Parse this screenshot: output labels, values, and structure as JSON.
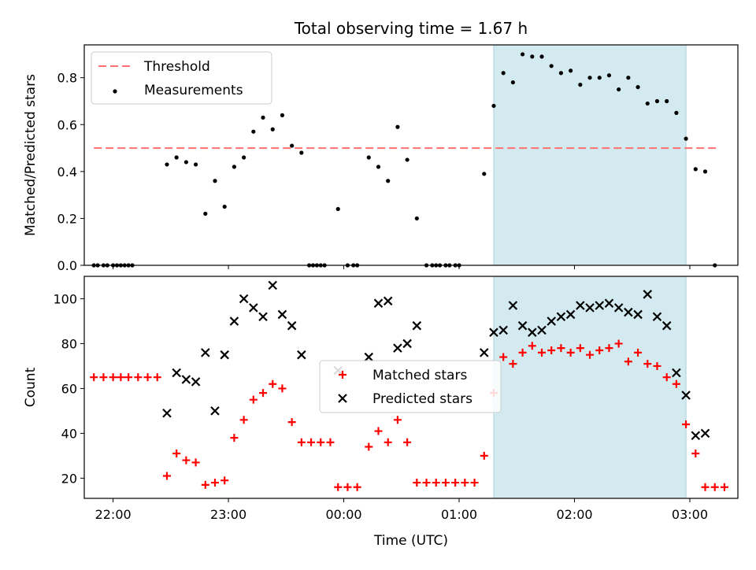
{
  "chart_data": [
    {
      "type": "scatter",
      "title": "Total observing time = 1.67 h",
      "xlabel": "",
      "ylabel": "Matched/Predicted stars",
      "ylim": [
        0,
        0.94
      ],
      "xlim": [
        "21:45",
        "03:25"
      ],
      "yticks": [
        "0.0",
        "0.2",
        "0.4",
        "0.6",
        "0.8"
      ],
      "highlight": {
        "start": "01:18",
        "end": "02:58",
        "color": "#d3ebf0"
      },
      "legend": {
        "placement": "top-left",
        "entries": [
          "Threshold",
          "Measurements"
        ]
      },
      "threshold": {
        "name": "Threshold",
        "value": 0.5,
        "color": "#ff7070",
        "x_range": [
          "21:50",
          "03:15"
        ]
      },
      "series": [
        {
          "name": "Measurements",
          "color": "#000000",
          "marker": "dot",
          "points": [
            [
              "21:50",
              0
            ],
            [
              "21:52",
              0
            ],
            [
              "21:55",
              0
            ],
            [
              "21:57",
              0
            ],
            [
              "22:00",
              0
            ],
            [
              "22:02",
              0
            ],
            [
              "22:04",
              0
            ],
            [
              "22:06",
              0
            ],
            [
              "22:08",
              0
            ],
            [
              "22:10",
              0
            ],
            [
              "22:28",
              0.43
            ],
            [
              "22:33",
              0.46
            ],
            [
              "22:38",
              0.44
            ],
            [
              "22:43",
              0.43
            ],
            [
              "22:48",
              0.22
            ],
            [
              "22:53",
              0.36
            ],
            [
              "22:58",
              0.25
            ],
            [
              "23:03",
              0.42
            ],
            [
              "23:08",
              0.46
            ],
            [
              "23:13",
              0.57
            ],
            [
              "23:18",
              0.63
            ],
            [
              "23:23",
              0.58
            ],
            [
              "23:28",
              0.64
            ],
            [
              "23:33",
              0.51
            ],
            [
              "23:38",
              0.48
            ],
            [
              "23:42",
              0
            ],
            [
              "23:44",
              0
            ],
            [
              "23:46",
              0
            ],
            [
              "23:48",
              0
            ],
            [
              "23:50",
              0
            ],
            [
              "23:57",
              0.24
            ],
            [
              "00:02",
              0
            ],
            [
              "00:05",
              0
            ],
            [
              "00:07",
              0
            ],
            [
              "00:13",
              0.46
            ],
            [
              "00:18",
              0.42
            ],
            [
              "00:23",
              0.36
            ],
            [
              "00:28",
              0.59
            ],
            [
              "00:33",
              0.45
            ],
            [
              "00:38",
              0.2
            ],
            [
              "00:43",
              0
            ],
            [
              "00:46",
              0
            ],
            [
              "00:48",
              0
            ],
            [
              "00:50",
              0
            ],
            [
              "00:53",
              0
            ],
            [
              "00:55",
              0
            ],
            [
              "00:58",
              0
            ],
            [
              "01:00",
              0
            ],
            [
              "01:13",
              0.39
            ],
            [
              "01:18",
              0.68
            ],
            [
              "01:23",
              0.82
            ],
            [
              "01:28",
              0.78
            ],
            [
              "01:33",
              0.9
            ],
            [
              "01:38",
              0.89
            ],
            [
              "01:43",
              0.89
            ],
            [
              "01:48",
              0.85
            ],
            [
              "01:53",
              0.82
            ],
            [
              "01:58",
              0.83
            ],
            [
              "02:03",
              0.77
            ],
            [
              "02:08",
              0.8
            ],
            [
              "02:13",
              0.8
            ],
            [
              "02:18",
              0.81
            ],
            [
              "02:23",
              0.75
            ],
            [
              "02:28",
              0.8
            ],
            [
              "02:33",
              0.76
            ],
            [
              "02:38",
              0.69
            ],
            [
              "02:43",
              0.7
            ],
            [
              "02:48",
              0.7
            ],
            [
              "02:53",
              0.65
            ],
            [
              "02:58",
              0.54
            ],
            [
              "03:03",
              0.41
            ],
            [
              "03:08",
              0.4
            ],
            [
              "03:13",
              0
            ]
          ]
        }
      ]
    },
    {
      "type": "scatter",
      "title": "",
      "xlabel": "Time (UTC)",
      "ylabel": "Count",
      "ylim": [
        11,
        110
      ],
      "xlim": [
        "21:45",
        "03:25"
      ],
      "xticks": [
        "22:00",
        "23:00",
        "00:00",
        "01:00",
        "02:00",
        "03:00"
      ],
      "yticks": [
        "20",
        "40",
        "60",
        "80",
        "100"
      ],
      "highlight": {
        "start": "01:18",
        "end": "02:58",
        "color": "#d3ebf0"
      },
      "legend": {
        "placement": "center",
        "entries": [
          "Matched stars",
          "Predicted stars"
        ]
      },
      "series": [
        {
          "name": "Matched stars",
          "color": "#ff0000",
          "marker": "plus",
          "points": [
            [
              "21:50",
              65
            ],
            [
              "21:55",
              65
            ],
            [
              "22:00",
              65
            ],
            [
              "22:04",
              65
            ],
            [
              "22:08",
              65
            ],
            [
              "22:13",
              65
            ],
            [
              "22:18",
              65
            ],
            [
              "22:23",
              65
            ],
            [
              "22:28",
              21
            ],
            [
              "22:33",
              31
            ],
            [
              "22:38",
              28
            ],
            [
              "22:43",
              27
            ],
            [
              "22:48",
              17
            ],
            [
              "22:53",
              18
            ],
            [
              "22:58",
              19
            ],
            [
              "23:03",
              38
            ],
            [
              "23:08",
              46
            ],
            [
              "23:13",
              55
            ],
            [
              "23:18",
              58
            ],
            [
              "23:23",
              62
            ],
            [
              "23:28",
              60
            ],
            [
              "23:33",
              45
            ],
            [
              "23:38",
              36
            ],
            [
              "23:43",
              36
            ],
            [
              "23:48",
              36
            ],
            [
              "23:53",
              36
            ],
            [
              "23:57",
              16
            ],
            [
              "00:02",
              16
            ],
            [
              "00:07",
              16
            ],
            [
              "00:13",
              34
            ],
            [
              "00:18",
              41
            ],
            [
              "00:23",
              36
            ],
            [
              "00:28",
              46
            ],
            [
              "00:33",
              36
            ],
            [
              "00:38",
              18
            ],
            [
              "00:43",
              18
            ],
            [
              "00:48",
              18
            ],
            [
              "00:53",
              18
            ],
            [
              "00:58",
              18
            ],
            [
              "01:03",
              18
            ],
            [
              "01:08",
              18
            ],
            [
              "01:13",
              30
            ],
            [
              "01:18",
              58
            ],
            [
              "01:23",
              74
            ],
            [
              "01:28",
              71
            ],
            [
              "01:33",
              76
            ],
            [
              "01:38",
              79
            ],
            [
              "01:43",
              76
            ],
            [
              "01:48",
              77
            ],
            [
              "01:53",
              78
            ],
            [
              "01:58",
              76
            ],
            [
              "02:03",
              78
            ],
            [
              "02:08",
              75
            ],
            [
              "02:13",
              77
            ],
            [
              "02:18",
              78
            ],
            [
              "02:23",
              80
            ],
            [
              "02:28",
              72
            ],
            [
              "02:33",
              76
            ],
            [
              "02:38",
              71
            ],
            [
              "02:43",
              70
            ],
            [
              "02:48",
              65
            ],
            [
              "02:53",
              62
            ],
            [
              "02:58",
              44
            ],
            [
              "03:03",
              31
            ],
            [
              "03:08",
              16
            ],
            [
              "03:13",
              16
            ],
            [
              "03:18",
              16
            ]
          ]
        },
        {
          "name": "Predicted stars",
          "color": "#000000",
          "marker": "cross",
          "points": [
            [
              "22:28",
              49
            ],
            [
              "22:33",
              67
            ],
            [
              "22:38",
              64
            ],
            [
              "22:43",
              63
            ],
            [
              "22:48",
              76
            ],
            [
              "22:53",
              50
            ],
            [
              "22:58",
              75
            ],
            [
              "23:03",
              90
            ],
            [
              "23:08",
              100
            ],
            [
              "23:13",
              96
            ],
            [
              "23:18",
              92
            ],
            [
              "23:23",
              106
            ],
            [
              "23:28",
              93
            ],
            [
              "23:33",
              88
            ],
            [
              "23:38",
              75
            ],
            [
              "23:57",
              68
            ],
            [
              "00:13",
              74
            ],
            [
              "00:18",
              98
            ],
            [
              "00:23",
              99
            ],
            [
              "00:28",
              78
            ],
            [
              "00:33",
              80
            ],
            [
              "00:38",
              88
            ],
            [
              "01:13",
              76
            ],
            [
              "01:18",
              85
            ],
            [
              "01:23",
              86
            ],
            [
              "01:28",
              97
            ],
            [
              "01:33",
              88
            ],
            [
              "01:38",
              85
            ],
            [
              "01:43",
              86
            ],
            [
              "01:48",
              90
            ],
            [
              "01:53",
              92
            ],
            [
              "01:58",
              93
            ],
            [
              "02:03",
              97
            ],
            [
              "02:08",
              96
            ],
            [
              "02:13",
              97
            ],
            [
              "02:18",
              98
            ],
            [
              "02:23",
              96
            ],
            [
              "02:28",
              94
            ],
            [
              "02:33",
              93
            ],
            [
              "02:38",
              102
            ],
            [
              "02:43",
              92
            ],
            [
              "02:48",
              88
            ],
            [
              "02:53",
              67
            ],
            [
              "02:58",
              57
            ],
            [
              "03:03",
              39
            ],
            [
              "03:08",
              40
            ]
          ]
        }
      ]
    }
  ]
}
